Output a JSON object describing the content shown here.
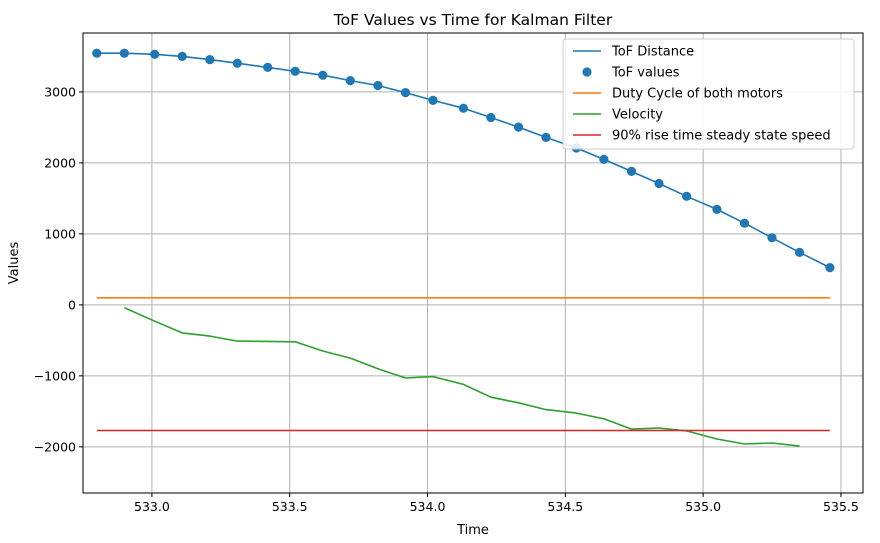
{
  "chart_data": {
    "type": "line",
    "title": "ToF Values vs Time for Kalman Filter",
    "xlabel": "Time",
    "ylabel": "Values",
    "xlim": [
      532.75,
      535.58
    ],
    "ylim": [
      -2650,
      3830
    ],
    "xticks": [
      533.0,
      533.5,
      534.0,
      534.5,
      535.0,
      535.5
    ],
    "xtick_labels": [
      "533.0",
      "533.5",
      "534.0",
      "534.5",
      "535.0",
      "535.5"
    ],
    "yticks": [
      -2000,
      -1000,
      0,
      1000,
      2000,
      3000
    ],
    "ytick_labels": [
      "−2000",
      "−1000",
      "0",
      "1000",
      "2000",
      "3000"
    ],
    "grid": true,
    "legend_position": "top-right",
    "series": [
      {
        "name": "ToF Distance",
        "kind": "line",
        "color": "#1f77b4",
        "x": [
          532.8,
          532.9,
          533.01,
          533.11,
          533.21,
          533.31,
          533.42,
          533.52,
          533.62,
          533.72,
          533.82,
          533.92,
          534.02,
          534.13,
          534.23,
          534.33,
          534.43,
          534.54,
          534.64,
          534.74,
          534.84,
          534.94,
          535.05,
          535.15,
          535.25,
          535.35,
          535.46
        ],
        "y": [
          3545,
          3545,
          3530,
          3500,
          3455,
          3405,
          3345,
          3290,
          3235,
          3160,
          3090,
          2990,
          2880,
          2770,
          2640,
          2505,
          2360,
          2210,
          2050,
          1880,
          1710,
          1530,
          1345,
          1150,
          945,
          740,
          525
        ]
      },
      {
        "name": "ToF values",
        "kind": "scatter",
        "color": "#1f77b4",
        "x": [
          532.8,
          532.9,
          533.01,
          533.11,
          533.21,
          533.31,
          533.42,
          533.52,
          533.62,
          533.72,
          533.82,
          533.92,
          534.02,
          534.13,
          534.23,
          534.33,
          534.43,
          534.54,
          534.64,
          534.74,
          534.84,
          534.94,
          535.05,
          535.15,
          535.25,
          535.35,
          535.46
        ],
        "y": [
          3545,
          3545,
          3530,
          3500,
          3455,
          3405,
          3345,
          3290,
          3235,
          3160,
          3090,
          2990,
          2880,
          2770,
          2640,
          2505,
          2360,
          2210,
          2050,
          1880,
          1710,
          1530,
          1345,
          1150,
          945,
          740,
          525
        ]
      },
      {
        "name": "Duty Cycle of both motors",
        "kind": "line",
        "color": "#ff7f0e",
        "x": [
          532.8,
          535.46
        ],
        "y": [
          100,
          100
        ]
      },
      {
        "name": "Velocity",
        "kind": "line",
        "color": "#2ca02c",
        "x": [
          532.9,
          533.01,
          533.11,
          533.21,
          533.31,
          533.42,
          533.52,
          533.62,
          533.72,
          533.82,
          533.92,
          534.02,
          534.13,
          534.23,
          534.33,
          534.43,
          534.54,
          534.64,
          534.74,
          534.84,
          534.94,
          535.05,
          535.15,
          535.25,
          535.35
        ],
        "y": [
          -40,
          -230,
          -395,
          -440,
          -510,
          -515,
          -520,
          -650,
          -750,
          -900,
          -1030,
          -1010,
          -1120,
          -1300,
          -1380,
          -1475,
          -1525,
          -1605,
          -1750,
          -1735,
          -1775,
          -1890,
          -1960,
          -1945,
          -1990
        ]
      },
      {
        "name": "90% rise time steady state speed",
        "kind": "line",
        "color": "#d62728",
        "x": [
          532.8,
          535.46
        ],
        "y": [
          -1770,
          -1770
        ]
      }
    ]
  }
}
